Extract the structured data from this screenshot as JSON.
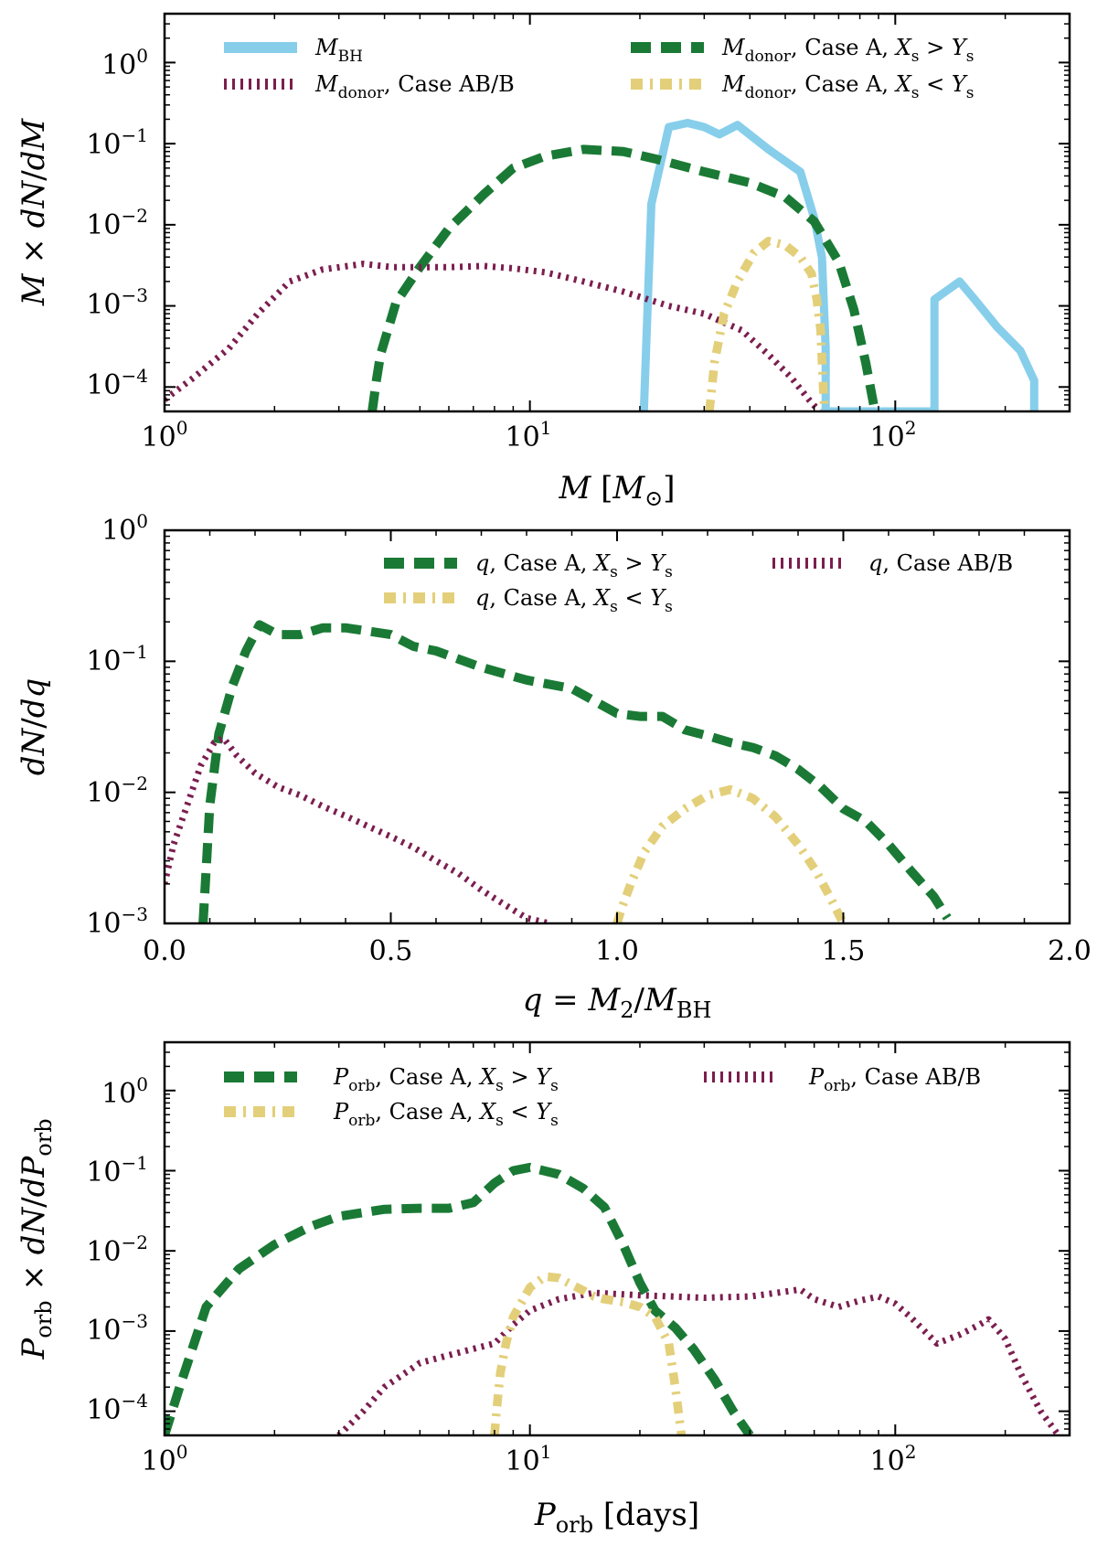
{
  "colors": {
    "bh": "#87ceeb",
    "caseA_x_gt_y": "#1a7a35",
    "caseA_x_lt_y": "#e3cf7a",
    "caseABB": "#7b1e4f"
  },
  "chart_data": [
    {
      "type": "line",
      "xscale": "log",
      "yscale": "log",
      "xlabel": "M [M⊙]",
      "ylabel": "M × dN/dM",
      "xlim": [
        1,
        300
      ],
      "ylim": [
        5e-05,
        4
      ],
      "xticks": [
        1,
        10,
        100
      ],
      "xticklabels": [
        "10^0",
        "10^1",
        "10^2"
      ],
      "yticks": [
        0.0001,
        0.001,
        0.01,
        0.1,
        1
      ],
      "yticklabels": [
        "10^−4",
        "10^−3",
        "10^−2",
        "10^−1",
        "10^0"
      ],
      "legend_columns": 2,
      "legend_location": "top",
      "series": [
        {
          "name": "M_BH",
          "style": "solid",
          "color": "bh",
          "x": [
            20.5,
            20.5,
            21.5,
            24,
            27,
            30,
            33,
            37,
            45,
            55,
            60,
            63,
            64.5,
            64.5,
            128,
            128,
            140,
            150,
            165,
            190,
            220,
            240,
            240
          ],
          "y": [
            5e-05,
            5e-05,
            0.018,
            0.16,
            0.18,
            0.16,
            0.13,
            0.17,
            0.085,
            0.045,
            0.012,
            0.004,
            0.0003,
            5e-05,
            5e-05,
            0.0012,
            0.0016,
            0.002,
            0.0012,
            0.00055,
            0.00028,
            0.00012,
            5e-05
          ]
        },
        {
          "name": "M_donor, Case A, X_s > Y_s",
          "style": "dashed",
          "color": "caseA_x_gt_y",
          "x": [
            3.7,
            3.8,
            3.9,
            4.3,
            5,
            6,
            7.5,
            9,
            11,
            14,
            18,
            22,
            30,
            40,
            50,
            60,
            70,
            77,
            83,
            88
          ],
          "y": [
            5e-05,
            0.00012,
            0.00025,
            0.0011,
            0.003,
            0.009,
            0.024,
            0.05,
            0.07,
            0.085,
            0.08,
            0.065,
            0.045,
            0.033,
            0.022,
            0.011,
            0.0035,
            0.0009,
            0.0002,
            5e-05
          ]
        },
        {
          "name": "M_donor, Case AB/B",
          "style": "dotted",
          "color": "caseABB",
          "x": [
            1,
            1.2,
            1.5,
            1.8,
            2.2,
            2.7,
            3.5,
            4.2,
            5,
            6,
            7.5,
            9,
            11,
            14,
            18,
            24,
            30,
            38,
            45,
            52,
            58,
            62
          ],
          "y": [
            7e-05,
            0.00013,
            0.0003,
            0.0008,
            0.002,
            0.0028,
            0.0033,
            0.003,
            0.003,
            0.003,
            0.0031,
            0.0029,
            0.0026,
            0.002,
            0.0015,
            0.001,
            0.0008,
            0.0005,
            0.00025,
            0.00013,
            7e-05,
            5e-05
          ]
        },
        {
          "name": "M_donor, Case A, X_s < Y_s",
          "style": "dashdot",
          "color": "caseA_x_lt_y",
          "x": [
            31,
            31.5,
            32,
            34,
            37,
            41,
            45,
            50,
            55,
            59,
            61,
            62.5,
            63.5,
            64
          ],
          "y": [
            5e-05,
            0.0001,
            0.0002,
            0.0008,
            0.002,
            0.0045,
            0.0063,
            0.0056,
            0.004,
            0.0025,
            0.0012,
            0.0005,
            0.0001,
            5e-05
          ]
        }
      ]
    },
    {
      "type": "line",
      "xscale": "linear",
      "yscale": "log",
      "xlabel": "q = M2/MBH",
      "ylabel": "dN/dq",
      "xlim": [
        0,
        2
      ],
      "ylim": [
        0.001,
        1
      ],
      "xticks": [
        0,
        0.5,
        1,
        1.5,
        2
      ],
      "xticklabels": [
        "0.0",
        "0.5",
        "1.0",
        "1.5",
        "2.0"
      ],
      "yticks": [
        0.001,
        0.01,
        0.1,
        1
      ],
      "yticklabels": [
        "10^−3",
        "10^−2",
        "10^−1",
        "10^0"
      ],
      "legend_columns": 2,
      "legend_location": "top",
      "series": [
        {
          "name": "q, Case A, X_s > Y_s",
          "style": "dashed",
          "color": "caseA_x_gt_y",
          "x": [
            0.085,
            0.09,
            0.1,
            0.12,
            0.15,
            0.18,
            0.21,
            0.25,
            0.3,
            0.35,
            0.4,
            0.45,
            0.5,
            0.55,
            0.6,
            0.7,
            0.8,
            0.9,
            1.0,
            1.05,
            1.1,
            1.15,
            1.2,
            1.25,
            1.3,
            1.35,
            1.4,
            1.45,
            1.5,
            1.55,
            1.6,
            1.65,
            1.7,
            1.73
          ],
          "y": [
            0.001,
            0.002,
            0.008,
            0.028,
            0.065,
            0.12,
            0.19,
            0.16,
            0.16,
            0.18,
            0.18,
            0.17,
            0.16,
            0.13,
            0.12,
            0.09,
            0.072,
            0.062,
            0.04,
            0.038,
            0.038,
            0.03,
            0.027,
            0.024,
            0.022,
            0.019,
            0.015,
            0.011,
            0.0075,
            0.006,
            0.004,
            0.0025,
            0.0016,
            0.0011
          ]
        },
        {
          "name": "q, Case AB/B",
          "style": "dotted",
          "color": "caseABB",
          "x": [
            0.0,
            0.02,
            0.05,
            0.08,
            0.11,
            0.13,
            0.16,
            0.2,
            0.25,
            0.3,
            0.35,
            0.4,
            0.45,
            0.5,
            0.55,
            0.6,
            0.65,
            0.7,
            0.75,
            0.8,
            0.85
          ],
          "y": [
            0.002,
            0.004,
            0.008,
            0.016,
            0.024,
            0.026,
            0.019,
            0.014,
            0.011,
            0.0095,
            0.0078,
            0.0066,
            0.0055,
            0.0046,
            0.0038,
            0.003,
            0.0024,
            0.0018,
            0.0014,
            0.0011,
            0.001
          ]
        },
        {
          "name": "q, Case A, X_s < Y_s",
          "style": "dashdot",
          "color": "caseA_x_lt_y",
          "x": [
            1.0,
            1.01,
            1.03,
            1.06,
            1.1,
            1.15,
            1.2,
            1.25,
            1.3,
            1.35,
            1.4,
            1.44,
            1.47,
            1.5
          ],
          "y": [
            0.001,
            0.0013,
            0.002,
            0.0035,
            0.0055,
            0.0075,
            0.0095,
            0.0105,
            0.009,
            0.0065,
            0.004,
            0.0025,
            0.0016,
            0.001
          ]
        }
      ]
    },
    {
      "type": "line",
      "xscale": "log",
      "yscale": "log",
      "xlabel": "P_orb [days]",
      "ylabel": "P_orb × dN/dP_orb",
      "xlim": [
        1,
        300
      ],
      "ylim": [
        5e-05,
        4
      ],
      "xticks": [
        1,
        10,
        100
      ],
      "xticklabels": [
        "10^0",
        "10^1",
        "10^2"
      ],
      "yticks": [
        0.0001,
        0.001,
        0.01,
        0.1,
        1
      ],
      "yticklabels": [
        "10^−4",
        "10^−3",
        "10^−2",
        "10^−1",
        "10^0"
      ],
      "legend_columns": 2,
      "legend_location": "top",
      "series": [
        {
          "name": "P_orb, Case A, X_s > Y_s",
          "style": "dashed",
          "color": "caseA_x_gt_y",
          "x": [
            1,
            1.1,
            1.3,
            1.6,
            2,
            2.5,
            3,
            4,
            5,
            6,
            7,
            8,
            9,
            10,
            12,
            14,
            16,
            18,
            20,
            22,
            25,
            28,
            32,
            36,
            40
          ],
          "y": [
            5e-05,
            0.0002,
            0.002,
            0.006,
            0.012,
            0.02,
            0.027,
            0.033,
            0.034,
            0.034,
            0.04,
            0.07,
            0.1,
            0.11,
            0.09,
            0.06,
            0.035,
            0.012,
            0.004,
            0.0018,
            0.0011,
            0.0006,
            0.00025,
            0.0001,
            5e-05
          ]
        },
        {
          "name": "P_orb, Case AB/B",
          "style": "dotted",
          "color": "caseABB",
          "x": [
            3,
            3.5,
            4,
            5,
            6,
            7,
            8,
            9,
            10,
            12,
            15,
            20,
            30,
            40,
            50,
            55,
            60,
            70,
            80,
            90,
            100,
            110,
            130,
            150,
            170,
            180,
            200,
            220,
            250,
            280
          ],
          "y": [
            5e-05,
            0.0001,
            0.0002,
            0.0004,
            0.0005,
            0.0006,
            0.0007,
            0.0012,
            0.0018,
            0.0025,
            0.003,
            0.0028,
            0.0026,
            0.0027,
            0.0031,
            0.0033,
            0.0025,
            0.002,
            0.0024,
            0.0027,
            0.0022,
            0.0015,
            0.0007,
            0.0009,
            0.0012,
            0.0014,
            0.0008,
            0.0003,
            0.0001,
            5e-05
          ]
        },
        {
          "name": "P_orb, Case A, X_s < Y_s",
          "style": "dashdot",
          "color": "caseA_x_lt_y",
          "x": [
            8,
            8.1,
            8.3,
            8.6,
            9,
            10,
            11,
            12,
            13,
            14,
            15,
            16,
            18,
            20,
            22,
            24,
            25,
            26
          ],
          "y": [
            5e-05,
            0.0001,
            0.0003,
            0.0007,
            0.0015,
            0.0035,
            0.0048,
            0.0046,
            0.0038,
            0.0032,
            0.0027,
            0.0025,
            0.0023,
            0.002,
            0.0015,
            0.0007,
            0.0002,
            5e-05
          ]
        }
      ]
    }
  ]
}
